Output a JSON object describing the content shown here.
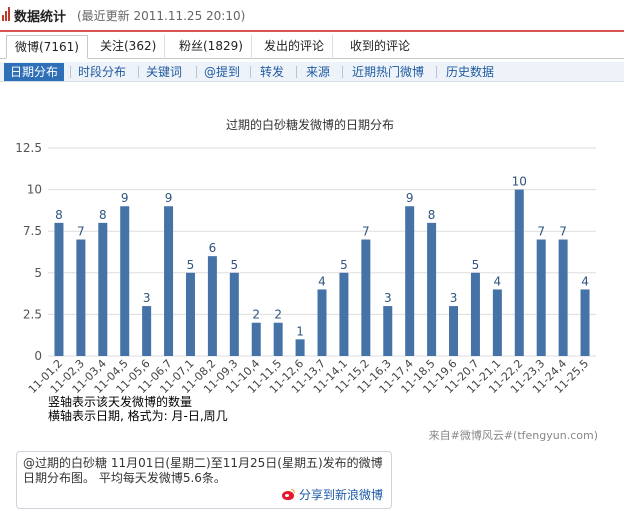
{
  "header": {
    "title": "数据统计",
    "updated": "(最近更新  2011.11.25 20:10)"
  },
  "tabs1": [
    "微博(7161)",
    "关注(362)",
    "粉丝(1829)",
    "发出的评论",
    "收到的评论"
  ],
  "tabs2": [
    "日期分布",
    "时段分布",
    "关键词",
    "@提到",
    "转发",
    "来源",
    "近期热门微博",
    "历史数据"
  ],
  "chart_data": {
    "type": "bar",
    "title": "过期的白砂糖发微博的日期分布",
    "categories": [
      "11-01,2",
      "11-02,3",
      "11-03,4",
      "11-04,5",
      "11-05,6",
      "11-06,7",
      "11-07,1",
      "11-08,2",
      "11-09,3",
      "11-10,4",
      "11-11,5",
      "11-12,6",
      "11-13,7",
      "11-14,1",
      "11-15,2",
      "11-16,3",
      "11-17,4",
      "11-18,5",
      "11-19,6",
      "11-20,7",
      "11-21,1",
      "11-22,2",
      "11-23,3",
      "11-24,4",
      "11-25,5"
    ],
    "values": [
      8,
      7,
      8,
      9,
      3,
      9,
      5,
      6,
      5,
      2,
      2,
      1,
      4,
      5,
      7,
      3,
      9,
      8,
      3,
      5,
      4,
      10,
      7,
      7,
      4
    ],
    "ylim": [
      0,
      12.5
    ],
    "yticks": [
      "0",
      "2.5",
      "5",
      "7.5",
      "10",
      "12.5"
    ],
    "grid": true,
    "bar_color": "#4572a7"
  },
  "notes": [
    "竖轴表示该天发微博的数量",
    "横轴表示日期, 格式为: 月-日,周几"
  ],
  "source": "来自#微博风云#(tfengyun.com)",
  "summary": {
    "text": "@过期的白砂糖 11月01日(星期二)至11月25日(星期五)发布的微博日期分布图。 平均每天发微博5.6条。",
    "share": "分享到新浪微博"
  }
}
